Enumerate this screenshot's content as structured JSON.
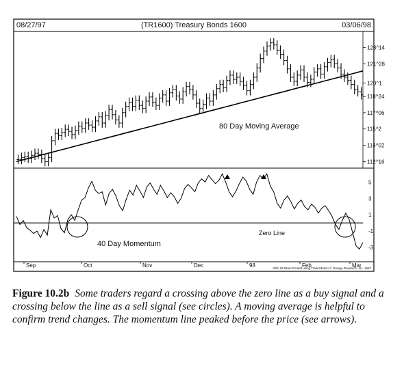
{
  "header": {
    "start_date": "08/27/97",
    "title": "(TR1600) Treasury Bonds 1600",
    "end_date": "03/06/98"
  },
  "chart_data": [
    {
      "type": "line",
      "panel": "price",
      "y_ticks": [
        "123^14",
        "121^28",
        "120^1",
        "118^24",
        "117^06",
        "115^2",
        "114^02",
        "112^16"
      ],
      "ylim": [
        112.0,
        124.6
      ],
      "annotations": [
        "80 Day Moving Average"
      ],
      "series": [
        {
          "style": "bars",
          "values": [
            112.7,
            112.9,
            113.0,
            112.8,
            113.1,
            113.3,
            113.2,
            112.8,
            112.5,
            112.9,
            114.5,
            115.2,
            115.0,
            115.3,
            115.6,
            115.4,
            115.1,
            115.5,
            115.9,
            115.7,
            116.2,
            116.0,
            115.8,
            116.4,
            116.8,
            116.2,
            116.9,
            117.5,
            117.0,
            116.5,
            116.2,
            117.2,
            117.8,
            118.2,
            117.8,
            118.4,
            117.9,
            117.6,
            118.3,
            118.7,
            118.2,
            117.9,
            118.6,
            118.9,
            118.3,
            119.1,
            119.4,
            118.8,
            118.5,
            119.2,
            119.7,
            119.4,
            118.9,
            118.1,
            117.6,
            118.0,
            118.6,
            118.3,
            118.9,
            119.5,
            119.9,
            119.6,
            120.3,
            120.8,
            120.4,
            120.6,
            120.2,
            119.8,
            119.3,
            119.9,
            120.6,
            121.5,
            122.4,
            123.1,
            123.6,
            123.9,
            123.7,
            123.2,
            122.8,
            122.2,
            121.4,
            120.6,
            120.2,
            120.8,
            121.3,
            120.6,
            120.1,
            120.4,
            121.1,
            121.4,
            120.9,
            121.6,
            122.0,
            122.3,
            121.9,
            121.5,
            120.9,
            120.6,
            120.3,
            119.9,
            119.4,
            119.2,
            118.9
          ]
        },
        {
          "name": "80 Day Moving Average",
          "style": "line",
          "values": [
            112.5,
            112.6,
            112.7,
            112.8,
            112.9,
            113.0,
            113.1,
            113.2,
            113.3,
            113.4,
            113.5,
            113.6,
            113.7,
            113.8,
            113.9,
            114.0,
            114.1,
            114.2,
            114.3,
            114.4,
            114.5,
            114.6,
            114.7,
            114.8,
            114.9,
            115.0,
            115.1,
            115.2,
            115.3,
            115.4,
            115.5,
            115.6,
            115.7,
            115.8,
            115.9,
            116.0,
            116.1,
            116.2,
            116.3,
            116.4,
            116.5,
            116.6,
            116.7,
            116.8,
            116.9,
            117.0,
            117.1,
            117.2,
            117.3,
            117.4,
            117.5,
            117.6,
            117.7,
            117.8,
            117.9,
            118.0,
            118.1,
            118.2,
            118.3,
            118.4,
            118.5,
            118.6,
            118.7,
            118.8,
            118.9,
            119.0,
            119.1,
            119.2,
            119.3,
            119.4,
            119.5,
            119.6,
            119.7,
            119.8,
            119.9,
            120.0,
            120.1,
            120.2,
            120.3,
            120.4,
            120.5,
            120.6,
            120.7,
            120.8,
            120.9,
            121.0,
            121.1,
            121.2
          ]
        }
      ]
    },
    {
      "type": "line",
      "panel": "momentum",
      "y_ticks": [
        "5",
        "3",
        "1",
        "-1",
        "-3"
      ],
      "ylim": [
        -4.5,
        6.2
      ],
      "annotations": [
        "Zero Line",
        "40 Day Momentum"
      ],
      "x_ticks": [
        "Sep",
        "Oct",
        "Nov",
        "Dec",
        "98",
        "Feb",
        "Mar"
      ],
      "series": [
        {
          "name": "40 Day Momentum",
          "values": [
            0.8,
            -0.2,
            0.3,
            -0.6,
            -0.9,
            -1.3,
            -1.0,
            -1.8,
            -0.8,
            -1.5,
            1.6,
            0.6,
            0.9,
            -0.7,
            -1.2,
            0.4,
            1.0,
            0.3,
            1.6,
            2.8,
            3.1,
            4.3,
            5.1,
            4.0,
            3.6,
            3.8,
            2.2,
            3.6,
            4.1,
            3.3,
            2.1,
            1.5,
            2.9,
            4.0,
            3.4,
            4.6,
            3.9,
            3.1,
            4.4,
            4.9,
            4.1,
            3.5,
            4.6,
            3.9,
            3.1,
            3.7,
            3.2,
            2.4,
            3.0,
            4.2,
            4.7,
            4.3,
            3.8,
            4.9,
            5.4,
            5.0,
            5.8,
            5.3,
            4.8,
            5.2,
            6.0,
            5.0,
            3.8,
            3.2,
            3.9,
            4.8,
            5.6,
            5.1,
            4.1,
            3.5,
            5.0,
            5.8,
            5.4,
            6.0,
            4.5,
            3.8,
            2.4,
            1.8,
            2.8,
            3.3,
            2.6,
            1.7,
            2.4,
            2.8,
            2.0,
            1.6,
            2.3,
            1.9,
            1.2,
            1.8,
            2.1,
            1.5,
            0.8,
            -0.2,
            -0.8,
            0.3,
            1.2,
            0.4,
            -1.2,
            -2.8,
            -3.2,
            -2.4
          ]
        }
      ]
    }
  ],
  "footer_note": "3/06 10:59am Printed using TradeStation © Omega Research, Inc. 1997",
  "caption": {
    "label": "Figure 10.2b",
    "text": "Some traders regard a crossing above the zero line as a buy signal and a crossing below the line as a sell signal (see circles). A moving average is helpful to confirm trend changes. The momentum line peaked before the price (see arrows)."
  }
}
